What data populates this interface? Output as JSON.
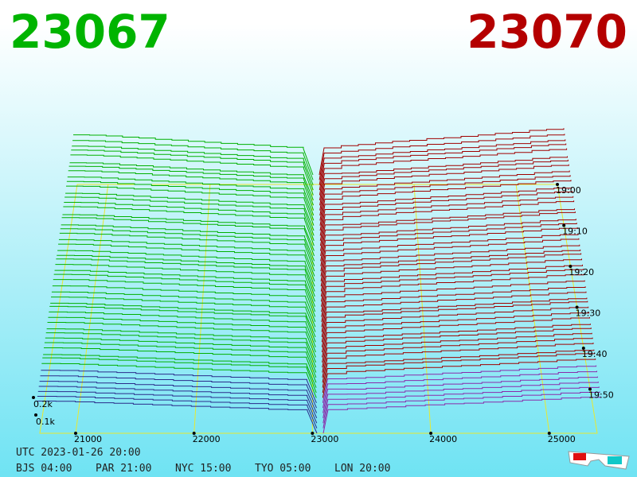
{
  "header": {
    "bid": "23067",
    "ask": "23070"
  },
  "price_axis": [
    "21000",
    "22000",
    "23000",
    "24000",
    "25000"
  ],
  "depth_axis": [
    "0.2k",
    "0.1k"
  ],
  "time_axis": [
    "19:00",
    "19:10",
    "19:20",
    "19:30",
    "19:40",
    "19:50"
  ],
  "clock": {
    "utc": "UTC 2023-01-26 20:00",
    "zones": [
      "BJS 04:00",
      "PAR 21:00",
      "NYC 15:00",
      "TYO 05:00",
      "LON 20:00"
    ]
  }
}
